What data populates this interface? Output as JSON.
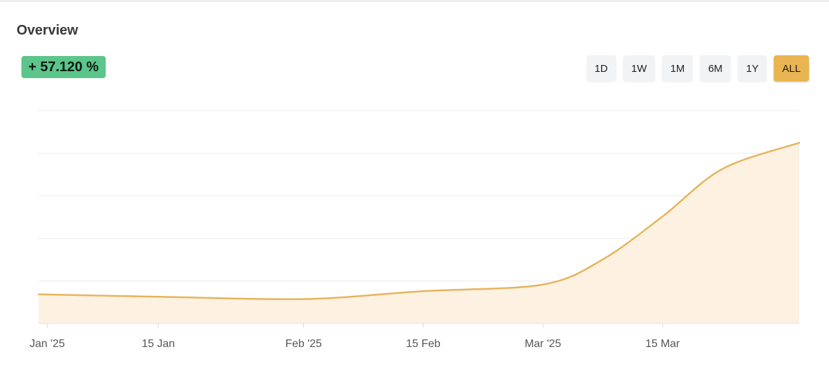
{
  "header": {
    "title": "Overview",
    "change": "+ 57.120 %"
  },
  "range_buttons": [
    {
      "label": "1D",
      "active": false
    },
    {
      "label": "1W",
      "active": false
    },
    {
      "label": "1M",
      "active": false
    },
    {
      "label": "6M",
      "active": false
    },
    {
      "label": "1Y",
      "active": false
    },
    {
      "label": "ALL",
      "active": true
    }
  ],
  "colors": {
    "line": "#e6b45c",
    "fill": "#fdf1e1",
    "badge": "#5cc58b",
    "active_button": "#e9b552",
    "grid": "#ececec"
  },
  "chart_data": {
    "type": "area",
    "x": [
      "2025-01-01",
      "2025-01-15",
      "2025-02-01",
      "2025-02-15",
      "2025-03-01",
      "2025-03-08",
      "2025-03-15",
      "2025-03-22",
      "2025-03-31"
    ],
    "series": [
      {
        "values": [
          0.137,
          0.126,
          0.115,
          0.152,
          0.183,
          0.301,
          0.503,
          0.726,
          0.849
        ]
      }
    ],
    "tick_labels": [
      "Jan '25",
      "15 Jan",
      "Feb '25",
      "15 Feb",
      "Mar '25",
      "15 Mar"
    ],
    "tick_dates": [
      "2025-01-02",
      "2025-01-15",
      "2025-02-01",
      "2025-02-15",
      "2025-03-01",
      "2025-03-15"
    ],
    "ylim": [
      0,
      1
    ],
    "xlim": [
      "2025-01-01",
      "2025-03-31"
    ],
    "grid": true,
    "legend": "none"
  }
}
